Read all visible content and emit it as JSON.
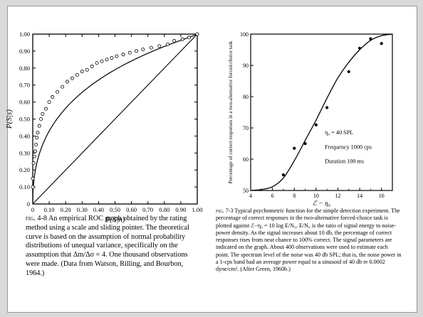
{
  "chart_data": [
    {
      "type": "scatter",
      "xlabel": "P(S|n)",
      "ylabel": "P(S|s)",
      "xlim": [
        0,
        1
      ],
      "ylim": [
        0,
        1
      ],
      "xticks": [
        "0",
        "0.10",
        "0.20",
        "0.30",
        "0.40",
        "0.50",
        "0.60",
        "0.70",
        "0.80",
        "0.90",
        "1.00"
      ],
      "yticks": [
        "0",
        "0.10",
        "0.20",
        "0.30",
        "0.40",
        "0.50",
        "0.60",
        "0.70",
        "0.80",
        "0.90",
        "1.00"
      ],
      "points": [
        [
          0.0,
          0.1
        ],
        [
          0.0,
          0.15
        ],
        [
          0.005,
          0.24
        ],
        [
          0.01,
          0.28
        ],
        [
          0.015,
          0.31
        ],
        [
          0.02,
          0.35
        ],
        [
          0.025,
          0.39
        ],
        [
          0.03,
          0.42
        ],
        [
          0.04,
          0.46
        ],
        [
          0.05,
          0.5
        ],
        [
          0.06,
          0.53
        ],
        [
          0.08,
          0.56
        ],
        [
          0.1,
          0.6
        ],
        [
          0.12,
          0.63
        ],
        [
          0.15,
          0.66
        ],
        [
          0.18,
          0.69
        ],
        [
          0.21,
          0.72
        ],
        [
          0.24,
          0.74
        ],
        [
          0.27,
          0.76
        ],
        [
          0.3,
          0.78
        ],
        [
          0.33,
          0.79
        ],
        [
          0.36,
          0.81
        ],
        [
          0.39,
          0.83
        ],
        [
          0.42,
          0.84
        ],
        [
          0.45,
          0.85
        ],
        [
          0.48,
          0.86
        ],
        [
          0.51,
          0.87
        ],
        [
          0.55,
          0.88
        ],
        [
          0.59,
          0.89
        ],
        [
          0.63,
          0.9
        ],
        [
          0.67,
          0.91
        ],
        [
          0.72,
          0.92
        ],
        [
          0.77,
          0.93
        ],
        [
          0.82,
          0.94
        ],
        [
          0.86,
          0.96
        ],
        [
          0.91,
          0.97
        ],
        [
          0.95,
          0.98
        ],
        [
          1.0,
          1.0
        ]
      ],
      "curve_dprime": 1.0,
      "slope_ratio": 1.3,
      "diagonal": true
    },
    {
      "type": "line",
      "xlabel": "ℰ − η₀",
      "ylabel": "Percentage of correct responses in a two-alternative forced-choice task",
      "xlim": [
        4,
        17
      ],
      "ylim": [
        50,
        100
      ],
      "xticks": [
        "4",
        "6",
        "8",
        "10",
        "12",
        "14",
        "16"
      ],
      "yticks": [
        "50",
        "60",
        "70",
        "80",
        "90",
        "100"
      ],
      "points": [
        [
          7,
          55
        ],
        [
          8,
          63.5
        ],
        [
          9,
          65
        ],
        [
          10,
          71
        ],
        [
          11,
          76.5
        ],
        [
          13,
          88
        ],
        [
          14,
          95.5
        ],
        [
          15,
          98.5
        ],
        [
          16,
          97
        ]
      ],
      "curve": [
        [
          4,
          50
        ],
        [
          5,
          50.3
        ],
        [
          6,
          51.2
        ],
        [
          7,
          54
        ],
        [
          8,
          59.5
        ],
        [
          9,
          66
        ],
        [
          10,
          72.5
        ],
        [
          11,
          79.5
        ],
        [
          12,
          86
        ],
        [
          13,
          91
        ],
        [
          14,
          95
        ],
        [
          15,
          98
        ],
        [
          16,
          99.5
        ],
        [
          17,
          100
        ]
      ],
      "annotation": {
        "line1": "η₀ = 40 SPL",
        "line2": "Frequency 1000 cps",
        "line3": "Duration 100 ms"
      }
    }
  ],
  "captions": {
    "left_label": "fig. 4-8",
    "left_text": "An empirical ROC graph obtained by the rating method using a scale and sliding pointer. The theoretical curve is based on the assumption of normal probability distributions of unequal variance, specifically on the assumption that Δm/Δσ = 4. One thousand observations were made. (Data from Watson, Rilling, and Bourbon, 1964.)",
    "right_label": "fig. 7-3",
    "right_text": "Typical psychometric function for the simple detection experiment. The percentage of correct responses in the two-alternative forced-choice task is plotted against ℰ−η₀ = 10 log E/N₀. E/N₀ is the ratio of signal energy to noise-power density. As the signal increases about 10 db, the percentage of correct responses rises from near chance to 100% correct. The signal parameters are indicated on the graph. About 400 observations were used to estimate each point. The spectrum level of the noise was 40 db SPL; that is, the noise power in a 1-cps band had an average power equal to a sinusoid of 40 db re 0.0002 dyne/cm². (After Green, 1960b.)"
  }
}
